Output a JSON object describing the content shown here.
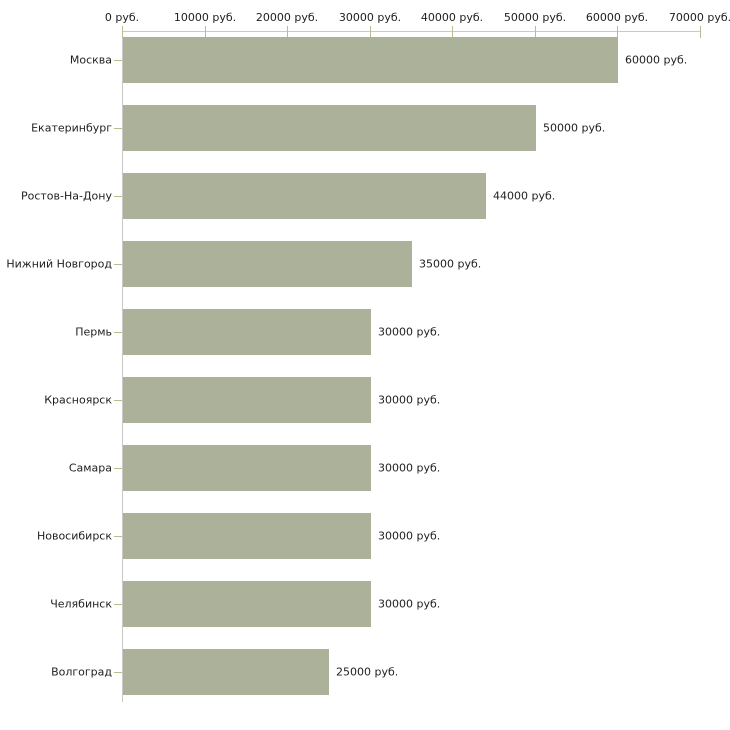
{
  "chart_data": {
    "type": "bar",
    "orientation": "horizontal",
    "title": "",
    "xlabel": "",
    "ylabel": "",
    "categories": [
      "Москва",
      "Екатеринбург",
      "Ростов-На-Дону",
      "Нижний Новгород",
      "Пермь",
      "Красноярск",
      "Самара",
      "Новосибирск",
      "Челябинск",
      "Волгоград"
    ],
    "values": [
      60000,
      50000,
      44000,
      35000,
      30000,
      30000,
      30000,
      30000,
      30000,
      25000
    ],
    "value_labels": [
      "60000 руб.",
      "50000 руб.",
      "44000 руб.",
      "35000 руб.",
      "30000 руб.",
      "30000 руб.",
      "30000 руб.",
      "30000 руб.",
      "30000 руб.",
      "25000 руб."
    ],
    "x_axis": {
      "position": "top",
      "min": 0,
      "max": 70000,
      "tick_step": 10000,
      "tick_labels": [
        "0 руб.",
        "10000 руб.",
        "20000 руб.",
        "30000 руб.",
        "40000 руб.",
        "50000 руб.",
        "60000 руб.",
        "70000 руб."
      ]
    },
    "grid": false,
    "legend": false,
    "colors": {
      "background": "#ffffff",
      "bar": "#acb299",
      "axis_line": "#c9c9c9",
      "tick_mark": "#b9bc8c",
      "text": "#1f1f1f"
    }
  }
}
